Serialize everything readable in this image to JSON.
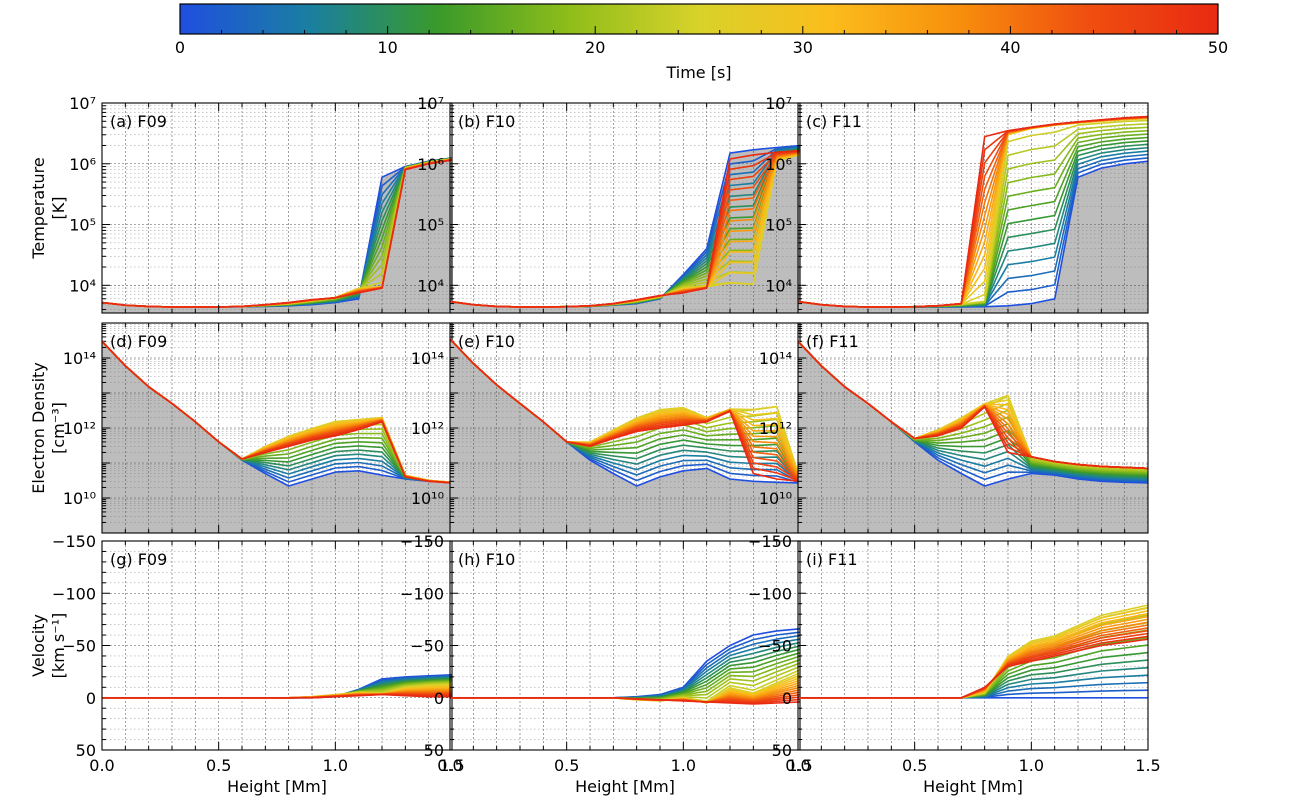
{
  "colorbar": {
    "label": "Time [s]",
    "ticks": [
      "0",
      "10",
      "20",
      "30",
      "40",
      "50"
    ],
    "range": [
      0,
      50
    ],
    "colormap": [
      "#1f4fe0",
      "#1a7fa0",
      "#3a9a2a",
      "#8fbd1a",
      "#d8d22a",
      "#fbbd1c",
      "#f78f0c",
      "#f04e10",
      "#e82a12"
    ]
  },
  "layout": {
    "columns": [
      "F09",
      "F10",
      "F11"
    ],
    "xlabel": "Height [Mm]",
    "x_ticks": [
      "0.0",
      "0.5",
      "1.0",
      "1.5"
    ]
  },
  "rows": [
    {
      "quantity": "temperature",
      "ylabel_lines": [
        "Temperature",
        "[K]"
      ],
      "y_ticks": [
        "10⁴",
        "10⁵",
        "10⁶",
        "10⁷"
      ],
      "scale": "log",
      "ylim": [
        3500,
        10000000
      ]
    },
    {
      "quantity": "electron_density",
      "ylabel_lines": [
        "Electron Density",
        "[cm⁻³]"
      ],
      "y_ticks": [
        "10¹⁰",
        "10¹²",
        "10¹⁴"
      ],
      "scale": "log",
      "ylim": [
        1000000000,
        1000000000000000
      ]
    },
    {
      "quantity": "velocity",
      "ylabel_lines": [
        "Velocity",
        "[km s⁻¹]"
      ],
      "y_ticks": [
        "−150",
        "−100",
        "−50",
        "0",
        "50"
      ],
      "scale": "linear-inverted",
      "ylim": [
        50,
        -150
      ]
    }
  ],
  "chart_data": [
    {
      "type": "line",
      "panel": "(a) F09",
      "quantity": "temperature",
      "x": [
        0.0,
        0.1,
        0.2,
        0.3,
        0.4,
        0.5,
        0.6,
        0.7,
        0.8,
        0.9,
        1.0,
        1.1,
        1.2,
        1.3,
        1.4,
        1.5
      ],
      "series": [
        {
          "time": 0,
          "values": [
            5200,
            4700,
            4500,
            4400,
            4400,
            4400,
            4450,
            4500,
            4600,
            4800,
            5200,
            6000,
            600000,
            900000,
            1100000,
            1250000
          ]
        },
        {
          "time": 25,
          "values": [
            5200,
            4700,
            4500,
            4400,
            4400,
            4400,
            4500,
            4700,
            5000,
            5600,
            6300,
            9000,
            9500,
            850000,
            1050000,
            1200000
          ]
        },
        {
          "time": 50,
          "values": [
            5200,
            4700,
            4500,
            4400,
            4400,
            4400,
            4500,
            4800,
            5200,
            5800,
            6200,
            7500,
            9000,
            800000,
            1000000,
            1150000
          ]
        }
      ]
    },
    {
      "type": "line",
      "panel": "(b) F10",
      "quantity": "temperature",
      "x": [
        0.0,
        0.1,
        0.2,
        0.3,
        0.4,
        0.5,
        0.6,
        0.7,
        0.8,
        0.9,
        1.0,
        1.1,
        1.2,
        1.3,
        1.4,
        1.5
      ],
      "series": [
        {
          "time": 0,
          "values": [
            5400,
            4800,
            4500,
            4400,
            4400,
            4450,
            4500,
            4700,
            5000,
            6000,
            15000,
            40000,
            1500000,
            1700000,
            1850000,
            2000000
          ]
        },
        {
          "time": 25,
          "values": [
            5400,
            4800,
            4500,
            4400,
            4400,
            4450,
            4550,
            4900,
            5500,
            6500,
            9000,
            9500,
            9000,
            8500,
            1100000,
            1400000
          ]
        },
        {
          "time": 50,
          "values": [
            5400,
            4800,
            4500,
            4400,
            4400,
            4450,
            4600,
            5000,
            5800,
            6800,
            7500,
            9000,
            1200000,
            1400000,
            1550000,
            1650000
          ]
        }
      ]
    },
    {
      "type": "line",
      "panel": "(c) F11",
      "quantity": "temperature",
      "x": [
        0.0,
        0.1,
        0.2,
        0.3,
        0.4,
        0.5,
        0.6,
        0.7,
        0.8,
        0.9,
        1.0,
        1.1,
        1.2,
        1.3,
        1.4,
        1.5
      ],
      "series": [
        {
          "time": 0,
          "values": [
            5400,
            4800,
            4500,
            4400,
            4400,
            4400,
            4400,
            4400,
            4450,
            4600,
            5000,
            6000,
            600000,
            850000,
            1000000,
            1100000
          ]
        },
        {
          "time": 25,
          "values": [
            5400,
            4800,
            4500,
            4400,
            4400,
            4450,
            4600,
            4900,
            5500,
            3000000,
            3800000,
            4300000,
            4700000,
            5000000,
            5300000,
            5500000
          ]
        },
        {
          "time": 50,
          "values": [
            5400,
            4800,
            4500,
            4400,
            4400,
            4450,
            4600,
            5000,
            2800000,
            3500000,
            4000000,
            4500000,
            4900000,
            5300000,
            5700000,
            6000000
          ]
        }
      ]
    },
    {
      "type": "line",
      "panel": "(d) F09",
      "quantity": "electron_density",
      "x": [
        0.0,
        0.1,
        0.2,
        0.3,
        0.4,
        0.5,
        0.6,
        0.7,
        0.8,
        0.9,
        1.0,
        1.1,
        1.2,
        1.3,
        1.4,
        1.5
      ],
      "series": [
        {
          "time": 0,
          "values": [
            300000000000000,
            60000000000000,
            15000000000000,
            5000000000000,
            1500000000000,
            400000000000,
            120000000000,
            50000000000,
            22000000000,
            35000000000,
            55000000000,
            60000000000,
            45000000000,
            35000000000,
            30000000000,
            28000000000
          ]
        },
        {
          "time": 25,
          "values": [
            300000000000000,
            60000000000000,
            15000000000000,
            5000000000000,
            1500000000000,
            400000000000,
            130000000000,
            300000000000,
            600000000000,
            1000000000000,
            1600000000000,
            1800000000000,
            2000000000000,
            45000000000,
            32000000000,
            28000000000
          ]
        },
        {
          "time": 50,
          "values": [
            300000000000000,
            60000000000000,
            15000000000000,
            5000000000000,
            1500000000000,
            400000000000,
            130000000000,
            200000000000,
            300000000000,
            450000000000,
            600000000000,
            900000000000,
            1500000000000,
            40000000000,
            30000000000,
            27000000000
          ]
        }
      ]
    },
    {
      "type": "line",
      "panel": "(e) F10",
      "quantity": "electron_density",
      "x": [
        0.0,
        0.1,
        0.2,
        0.3,
        0.4,
        0.5,
        0.6,
        0.7,
        0.8,
        0.9,
        1.0,
        1.1,
        1.2,
        1.3,
        1.4,
        1.5
      ],
      "series": [
        {
          "time": 0,
          "values": [
            350000000000000,
            70000000000000,
            17000000000000,
            5000000000000,
            1500000000000,
            400000000000,
            120000000000,
            50000000000,
            22000000000,
            40000000000,
            60000000000,
            70000000000,
            35000000000,
            30000000000,
            28000000000,
            27000000000
          ]
        },
        {
          "time": 25,
          "values": [
            350000000000000,
            70000000000000,
            17000000000000,
            5000000000000,
            1500000000000,
            400000000000,
            400000000000,
            900000000000,
            2000000000000,
            3500000000000,
            4000000000000,
            2000000000000,
            3500000000000,
            4000000000000,
            5000000000000,
            35000000000
          ]
        },
        {
          "time": 50,
          "values": [
            350000000000000,
            70000000000000,
            17000000000000,
            5000000000000,
            1500000000000,
            400000000000,
            300000000000,
            500000000000,
            800000000000,
            1000000000000,
            1200000000000,
            1500000000000,
            3000000000000,
            50000000000,
            35000000000,
            30000000000
          ]
        }
      ]
    },
    {
      "type": "line",
      "panel": "(f) F11",
      "quantity": "electron_density",
      "x": [
        0.0,
        0.1,
        0.2,
        0.3,
        0.4,
        0.5,
        0.6,
        0.7,
        0.8,
        0.9,
        1.0,
        1.1,
        1.2,
        1.3,
        1.4,
        1.5
      ],
      "series": [
        {
          "time": 0,
          "values": [
            300000000000000,
            60000000000000,
            15000000000000,
            5000000000000,
            1500000000000,
            400000000000,
            120000000000,
            50000000000,
            22000000000,
            35000000000,
            50000000000,
            45000000000,
            35000000000,
            30000000000,
            28000000000,
            27000000000
          ]
        },
        {
          "time": 25,
          "values": [
            300000000000000,
            60000000000000,
            15000000000000,
            5000000000000,
            1500000000000,
            500000000000,
            900000000000,
            2000000000000,
            5000000000000,
            10000000000000,
            150000000000,
            110000000000,
            90000000000,
            80000000000,
            75000000000,
            70000000000
          ]
        },
        {
          "time": 50,
          "values": [
            300000000000000,
            60000000000000,
            15000000000000,
            5000000000000,
            1500000000000,
            500000000000,
            600000000000,
            1000000000000,
            4000000000000,
            200000000000,
            150000000000,
            110000000000,
            90000000000,
            80000000000,
            75000000000,
            70000000000
          ]
        }
      ]
    },
    {
      "type": "line",
      "panel": "(g) F09",
      "quantity": "velocity",
      "x": [
        0.0,
        0.1,
        0.2,
        0.3,
        0.4,
        0.5,
        0.6,
        0.7,
        0.8,
        0.9,
        1.0,
        1.1,
        1.2,
        1.3,
        1.4,
        1.5
      ],
      "series": [
        {
          "time": 0,
          "values": [
            0,
            0,
            0,
            0,
            0,
            0,
            0,
            0,
            0,
            0,
            -1,
            -8,
            -18,
            -20,
            -21,
            -22
          ]
        },
        {
          "time": 25,
          "values": [
            0,
            0,
            0,
            0,
            0,
            0,
            0,
            0,
            0,
            -1,
            -3,
            -5,
            -4,
            -10,
            -12,
            -13
          ]
        },
        {
          "time": 50,
          "values": [
            0,
            0,
            0,
            0,
            0,
            0,
            0,
            0,
            0,
            0,
            -1,
            -2,
            -3,
            -2,
            -1,
            -1
          ]
        }
      ]
    },
    {
      "type": "line",
      "panel": "(h) F10",
      "quantity": "velocity",
      "x": [
        0.0,
        0.1,
        0.2,
        0.3,
        0.4,
        0.5,
        0.6,
        0.7,
        0.8,
        0.9,
        1.0,
        1.1,
        1.2,
        1.3,
        1.4,
        1.5
      ],
      "series": [
        {
          "time": 0,
          "values": [
            0,
            0,
            0,
            0,
            0,
            0,
            0,
            0,
            -1,
            -3,
            -10,
            -35,
            -50,
            -60,
            -64,
            -66
          ]
        },
        {
          "time": 25,
          "values": [
            0,
            0,
            0,
            0,
            0,
            0,
            0,
            0,
            2,
            3,
            0,
            5,
            -10,
            -5,
            -15,
            -25
          ]
        },
        {
          "time": 50,
          "values": [
            0,
            0,
            0,
            0,
            0,
            0,
            0,
            0,
            1,
            2,
            3,
            4,
            5,
            6,
            5,
            4
          ]
        }
      ]
    },
    {
      "type": "line",
      "panel": "(i) F11",
      "quantity": "velocity",
      "x": [
        0.0,
        0.1,
        0.2,
        0.3,
        0.4,
        0.5,
        0.6,
        0.7,
        0.8,
        0.9,
        1.0,
        1.1,
        1.2,
        1.3,
        1.4,
        1.5
      ],
      "series": [
        {
          "time": 0,
          "values": [
            0,
            0,
            0,
            0,
            0,
            0,
            0,
            0,
            0,
            0,
            0,
            0,
            0,
            0,
            0,
            0
          ]
        },
        {
          "time": 25,
          "values": [
            0,
            0,
            0,
            0,
            0,
            0,
            0,
            0,
            -5,
            -40,
            -55,
            -60,
            -70,
            -80,
            -85,
            -90
          ]
        },
        {
          "time": 50,
          "values": [
            0,
            0,
            0,
            0,
            0,
            0,
            0,
            0,
            -10,
            -30,
            -35,
            -40,
            -45,
            -50,
            -53,
            -56
          ]
        }
      ]
    }
  ]
}
